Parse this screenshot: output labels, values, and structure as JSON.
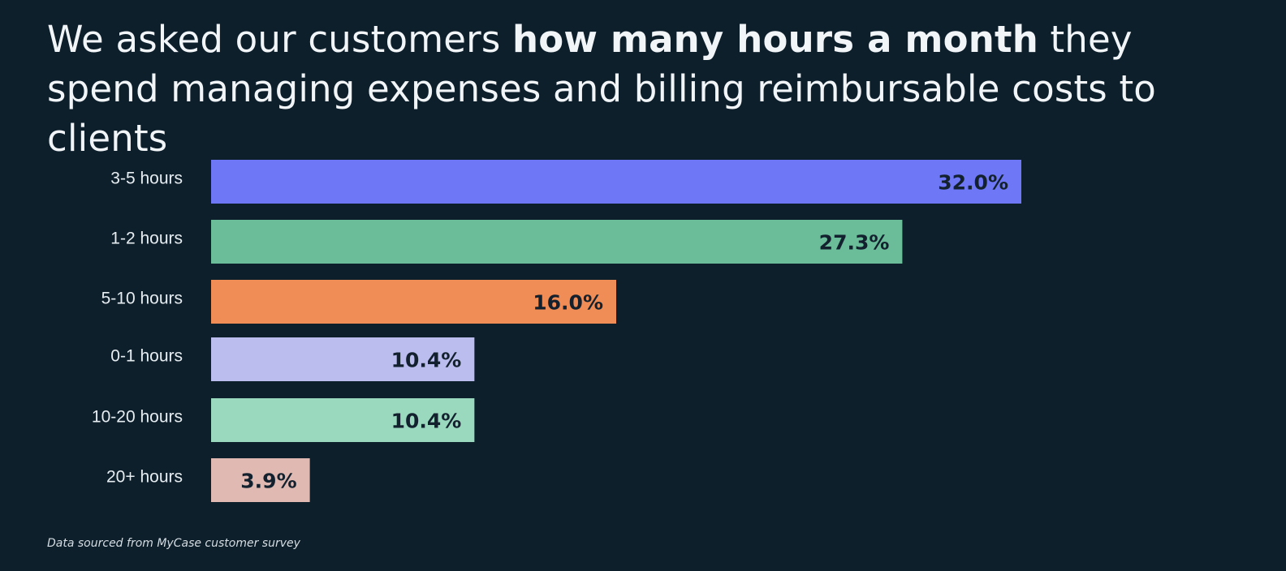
{
  "title": {
    "part1": "We asked our customers ",
    "bold": "how many hours a month",
    "part2": " they spend managing expenses and billing reimbursable costs to clients"
  },
  "chart_data": {
    "type": "bar",
    "orientation": "horizontal",
    "title": "We asked our customers how many hours a month they spend managing expenses and billing reimbursable costs to clients",
    "categories": [
      "3-5 hours",
      "1-2 hours",
      "5-10 hours",
      "0-1 hours",
      "10-20 hours",
      "20+ hours"
    ],
    "values": [
      32.0,
      27.3,
      16.0,
      10.4,
      10.4,
      3.9
    ],
    "value_labels": [
      "32.0%",
      "27.3%",
      "16.0%",
      "10.4%",
      "10.4%",
      "3.9%"
    ],
    "colors": [
      "#6e78f7",
      "#6bbd9a",
      "#f08c55",
      "#babdee",
      "#9bd9bf",
      "#e0b9b2"
    ],
    "xlabel": "",
    "ylabel": "",
    "xlim": [
      0,
      32.0
    ],
    "grid": false,
    "legend": "none"
  },
  "footnote": "Data sourced from MyCase customer survey"
}
